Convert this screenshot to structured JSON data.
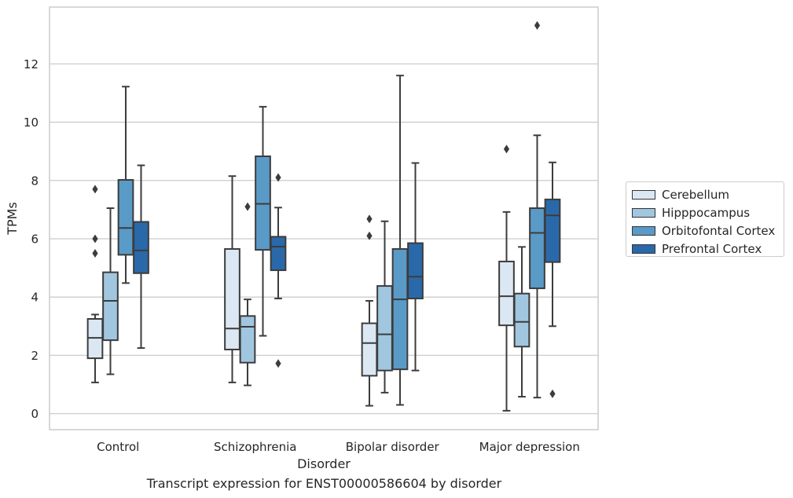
{
  "chart_data": {
    "type": "box",
    "xlabel": "Disorder",
    "ylabel": "TPMs",
    "caption": "Transcript expression for ENST00000586604 by disorder",
    "ylim": [
      -0.55,
      13.95
    ],
    "yticks": [
      0,
      2,
      4,
      6,
      8,
      10,
      12
    ],
    "grid": "horizontal",
    "legend_position": "right",
    "categories": [
      "Control",
      "Schizophrenia",
      "Bipolar disorder",
      "Major depression"
    ],
    "series": [
      {
        "name": "Cerebellum",
        "color": "#dbe8f4",
        "boxes": [
          {
            "whislo": 1.07,
            "q1": 1.9,
            "med": 2.6,
            "q3": 3.25,
            "whishi": 3.4,
            "fliers": [
              5.5,
              6.0,
              7.7
            ]
          },
          {
            "whislo": 1.07,
            "q1": 2.2,
            "med": 2.92,
            "q3": 5.65,
            "whishi": 8.15,
            "fliers": []
          },
          {
            "whislo": 0.27,
            "q1": 1.3,
            "med": 2.42,
            "q3": 3.1,
            "whishi": 3.87,
            "fliers": [
              6.1,
              6.68
            ]
          },
          {
            "whislo": 0.1,
            "q1": 3.03,
            "med": 4.03,
            "q3": 5.22,
            "whishi": 6.92,
            "fliers": [
              9.08
            ]
          }
        ]
      },
      {
        "name": "Hipppocampus",
        "color": "#a0c7df",
        "boxes": [
          {
            "whislo": 1.35,
            "q1": 2.52,
            "med": 3.87,
            "q3": 4.85,
            "whishi": 7.05,
            "fliers": []
          },
          {
            "whislo": 0.97,
            "q1": 1.75,
            "med": 2.98,
            "q3": 3.35,
            "whishi": 3.92,
            "fliers": [
              7.1
            ]
          },
          {
            "whislo": 0.72,
            "q1": 1.48,
            "med": 2.72,
            "q3": 4.38,
            "whishi": 6.6,
            "fliers": []
          },
          {
            "whislo": 0.58,
            "q1": 2.3,
            "med": 3.15,
            "q3": 4.12,
            "whishi": 5.72,
            "fliers": []
          }
        ]
      },
      {
        "name": "Orbitofontal Cortex",
        "color": "#5a9ac7",
        "boxes": [
          {
            "whislo": 4.48,
            "q1": 5.45,
            "med": 6.37,
            "q3": 8.02,
            "whishi": 11.22,
            "fliers": []
          },
          {
            "whislo": 2.67,
            "q1": 5.62,
            "med": 7.2,
            "q3": 8.83,
            "whishi": 10.53,
            "fliers": []
          },
          {
            "whislo": 0.3,
            "q1": 1.52,
            "med": 3.92,
            "q3": 5.65,
            "whishi": 11.6,
            "fliers": []
          },
          {
            "whislo": 0.55,
            "q1": 4.3,
            "med": 6.2,
            "q3": 7.05,
            "whishi": 9.55,
            "fliers": [
              13.32
            ]
          }
        ]
      },
      {
        "name": "Prefrontal Cortex",
        "color": "#2a69a9",
        "boxes": [
          {
            "whislo": 2.25,
            "q1": 4.82,
            "med": 5.6,
            "q3": 6.58,
            "whishi": 8.52,
            "fliers": []
          },
          {
            "whislo": 3.95,
            "q1": 4.92,
            "med": 5.73,
            "q3": 6.07,
            "whishi": 7.07,
            "fliers": [
              1.72,
              8.1
            ]
          },
          {
            "whislo": 1.48,
            "q1": 3.95,
            "med": 4.7,
            "q3": 5.85,
            "whishi": 8.6,
            "fliers": []
          },
          {
            "whislo": 3.0,
            "q1": 5.2,
            "med": 6.8,
            "q3": 7.35,
            "whishi": 8.62,
            "fliers": [
              0.68
            ]
          }
        ]
      }
    ]
  }
}
